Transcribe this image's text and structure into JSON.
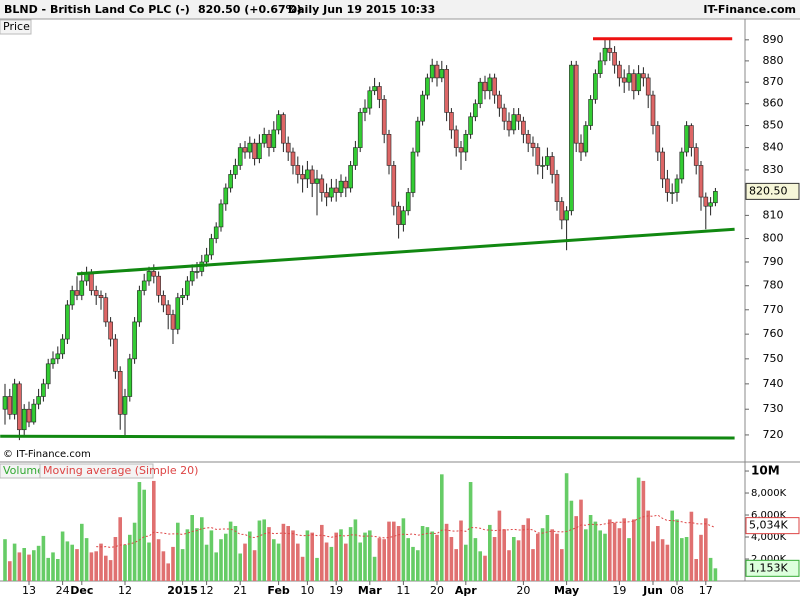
{
  "chart_data": {
    "type": "candlestick",
    "title": "BLND - British Land Co PLC (-)",
    "price_text": "820.50 (+0.67%)",
    "period_text": "Daily  Jun 19 2015 10:33",
    "brand": "IT-Finance.com",
    "panel_label": "Price",
    "copyright": "© IT-Finance.com",
    "log_scale": true,
    "up_color": "#33cc33",
    "down_color": "#dd6666",
    "categories": [
      null,
      null,
      null,
      null,
      null,
      "13",
      null,
      null,
      null,
      null,
      null,
      null,
      "24",
      null,
      null,
      null,
      "Dec",
      null,
      null,
      null,
      null,
      null,
      null,
      null,
      null,
      "12",
      null,
      null,
      null,
      null,
      null,
      null,
      null,
      null,
      null,
      null,
      null,
      "2015",
      null,
      null,
      null,
      null,
      "12",
      null,
      null,
      null,
      null,
      null,
      null,
      "21",
      null,
      null,
      null,
      null,
      null,
      null,
      null,
      "Feb",
      null,
      null,
      null,
      null,
      null,
      "10",
      null,
      null,
      null,
      null,
      null,
      "19",
      null,
      null,
      null,
      null,
      null,
      null,
      "Mar",
      null,
      null,
      null,
      null,
      null,
      null,
      "11",
      null,
      null,
      null,
      null,
      null,
      null,
      "20",
      null,
      null,
      null,
      null,
      null,
      "Apr",
      null,
      null,
      null,
      null,
      null,
      null,
      null,
      null,
      null,
      null,
      null,
      "20",
      null,
      null,
      null,
      null,
      null,
      null,
      null,
      null,
      "May",
      null,
      null,
      null,
      null,
      null,
      null,
      null,
      null,
      null,
      null,
      "19",
      null,
      null,
      null,
      null,
      null,
      null,
      "Jun",
      null,
      null,
      null,
      null,
      "08",
      null,
      null,
      null,
      null,
      null,
      "17",
      null,
      null
    ],
    "open": [
      730,
      735,
      728,
      740,
      722,
      730,
      725,
      732,
      735,
      740,
      748,
      750,
      752,
      758,
      772,
      778,
      776,
      782,
      785,
      778,
      776,
      775,
      765,
      758,
      745,
      728,
      735,
      750,
      765,
      778,
      782,
      786,
      784,
      776,
      772,
      768,
      762,
      775,
      776,
      782,
      786,
      786,
      790,
      793,
      800,
      805,
      815,
      822,
      828,
      832,
      840,
      838,
      842,
      835,
      842,
      846,
      840,
      848,
      855,
      842,
      838,
      832,
      828,
      826,
      830,
      824,
      826,
      820,
      818,
      822,
      820,
      825,
      822,
      832,
      840,
      856,
      858,
      866,
      868,
      862,
      846,
      832,
      814,
      806,
      812,
      820,
      838,
      852,
      864,
      872,
      878,
      872,
      876,
      856,
      848,
      840,
      838,
      846,
      854,
      860,
      870,
      866,
      872,
      864,
      858,
      852,
      848,
      855,
      852,
      846,
      842,
      840,
      832,
      832,
      836,
      828,
      816,
      808,
      812,
      878,
      842,
      838,
      850,
      862,
      874,
      880,
      886,
      884,
      878,
      872,
      870,
      874,
      866,
      874,
      872,
      864,
      850,
      838,
      826,
      820,
      820,
      826,
      838,
      850,
      840,
      832,
      818,
      814,
      815.5
    ],
    "high": [
      740,
      738,
      742,
      741,
      732,
      733,
      734,
      738,
      742,
      750,
      753,
      755,
      760,
      774,
      780,
      784,
      786,
      788,
      787,
      780,
      778,
      777,
      767,
      760,
      747,
      738,
      752,
      767,
      780,
      785,
      788,
      789,
      786,
      778,
      774,
      770,
      777,
      779,
      784,
      789,
      790,
      793,
      796,
      802,
      807,
      817,
      824,
      830,
      835,
      842,
      843,
      845,
      844,
      846,
      849,
      848,
      852,
      857,
      856,
      845,
      840,
      836,
      832,
      834,
      832,
      830,
      828,
      824,
      826,
      826,
      828,
      827,
      834,
      843,
      858,
      862,
      868,
      872,
      870,
      864,
      848,
      834,
      816,
      814,
      822,
      840,
      854,
      866,
      874,
      881,
      880,
      880,
      878,
      858,
      850,
      843,
      848,
      856,
      862,
      872,
      873,
      874,
      874,
      866,
      860,
      856,
      858,
      858,
      854,
      848,
      845,
      842,
      836,
      840,
      838,
      830,
      818,
      814,
      880,
      880,
      846,
      852,
      864,
      876,
      884,
      890,
      890,
      887,
      880,
      876,
      878,
      876,
      878,
      877,
      874,
      866,
      852,
      840,
      830,
      824,
      828,
      840,
      852,
      851,
      842,
      834,
      820,
      818,
      822
    ],
    "low": [
      724,
      726,
      726,
      718,
      720,
      723,
      724,
      730,
      733,
      738,
      746,
      748,
      750,
      756,
      770,
      774,
      774,
      780,
      776,
      772,
      770,
      763,
      755,
      742,
      722,
      719,
      733,
      748,
      763,
      776,
      780,
      781,
      773,
      769,
      762,
      756,
      760,
      772,
      774,
      780,
      783,
      784,
      788,
      791,
      798,
      803,
      812,
      820,
      826,
      830,
      835,
      835,
      832,
      833,
      840,
      836,
      838,
      846,
      838,
      834,
      828,
      824,
      820,
      822,
      818,
      810,
      816,
      814,
      816,
      816,
      818,
      818,
      820,
      830,
      838,
      852,
      855,
      864,
      858,
      842,
      828,
      810,
      800,
      803,
      810,
      818,
      836,
      850,
      862,
      870,
      868,
      870,
      852,
      844,
      836,
      830,
      834,
      844,
      852,
      858,
      862,
      862,
      860,
      854,
      848,
      845,
      846,
      848,
      842,
      838,
      836,
      828,
      826,
      830,
      824,
      812,
      804,
      795,
      810,
      838,
      834,
      836,
      848,
      860,
      872,
      878,
      880,
      874,
      868,
      865,
      866,
      862,
      864,
      868,
      858,
      846,
      834,
      822,
      816,
      815,
      816,
      824,
      836,
      836,
      828,
      812,
      804,
      810,
      814
    ],
    "close": [
      735,
      728,
      740,
      722,
      730,
      725,
      732,
      735,
      740,
      748,
      750,
      752,
      758,
      772,
      778,
      776,
      782,
      785,
      778,
      776,
      775,
      765,
      758,
      745,
      728,
      735,
      750,
      765,
      778,
      782,
      786,
      784,
      776,
      772,
      768,
      762,
      775,
      776,
      782,
      786,
      786,
      790,
      793,
      800,
      805,
      815,
      822,
      828,
      832,
      840,
      838,
      842,
      835,
      842,
      846,
      840,
      848,
      855,
      842,
      838,
      832,
      828,
      826,
      830,
      824,
      826,
      820,
      818,
      822,
      820,
      825,
      822,
      832,
      840,
      856,
      858,
      866,
      868,
      862,
      846,
      832,
      814,
      806,
      812,
      820,
      838,
      852,
      864,
      872,
      878,
      872,
      876,
      856,
      848,
      840,
      838,
      846,
      854,
      860,
      870,
      866,
      872,
      864,
      858,
      852,
      848,
      855,
      852,
      846,
      842,
      840,
      832,
      832,
      836,
      828,
      816,
      808,
      812,
      878,
      842,
      838,
      850,
      862,
      874,
      880,
      886,
      884,
      878,
      872,
      870,
      874,
      866,
      874,
      872,
      864,
      850,
      838,
      826,
      820,
      820,
      826,
      838,
      850,
      840,
      832,
      818,
      814,
      815.5,
      820.5
    ],
    "ylim": [
      710,
      900
    ],
    "yticks": [
      720,
      730,
      740,
      750,
      760,
      770,
      780,
      790,
      800,
      810,
      830,
      840,
      850,
      860,
      870,
      880,
      890
    ],
    "last_price": {
      "value": 820.5,
      "label": "820.50"
    },
    "trend_lines": [
      {
        "color": "#ee1111",
        "points": [
          [
            122.5,
            890.5
          ],
          [
            151.5,
            890.5
          ]
        ]
      },
      {
        "color": "#118811",
        "points": [
          [
            15,
            785
          ],
          [
            152,
            804
          ]
        ]
      },
      {
        "color": "#118811",
        "points": [
          [
            -1,
            719.5
          ],
          [
            152,
            718.8
          ]
        ]
      }
    ],
    "volume": {
      "name": "Volume",
      "ma_name": "Moving average (Simple 20)",
      "ma_color": "#dd4444",
      "up_color": "#66cc66",
      "down_color": "#e07070",
      "values": [
        3800,
        1800,
        3400,
        2600,
        3000,
        2400,
        2800,
        3200,
        4100,
        2100,
        2600,
        2000,
        4500,
        3600,
        3300,
        2900,
        5200,
        3900,
        2600,
        2700,
        3400,
        2300,
        1900,
        4000,
        5800,
        3300,
        4200,
        5300,
        9000,
        8300,
        3500,
        9100,
        3800,
        2700,
        1600,
        3100,
        5300,
        2900,
        4700,
        6000,
        4800,
        5800,
        3300,
        4600,
        2600,
        3800,
        4300,
        5400,
        5000,
        2500,
        3400,
        4500,
        2800,
        5500,
        5600,
        4900,
        3800,
        3400,
        5200,
        5000,
        4600,
        3400,
        2200,
        4600,
        4400,
        2100,
        5100,
        3500,
        3100,
        4400,
        4700,
        3400,
        4900,
        5600,
        3500,
        4400,
        4600,
        2200,
        3900,
        3800,
        5400,
        5400,
        5000,
        5700,
        3900,
        3100,
        2800,
        5000,
        4900,
        4500,
        4200,
        9700,
        5200,
        4000,
        2900,
        5500,
        3300,
        9000,
        3900,
        2700,
        2300,
        5100,
        4000,
        6400,
        4700,
        2800,
        4000,
        3700,
        5100,
        5700,
        2900,
        4300,
        4800,
        6000,
        4700,
        4300,
        2900,
        9800,
        7300,
        5900,
        7400,
        4700,
        6000,
        5400,
        4600,
        4300,
        5600,
        5300,
        4800,
        5700,
        3900,
        5600,
        9400,
        9100,
        6400,
        3600,
        5000,
        3800,
        3300,
        6400,
        5600,
        3900,
        4000,
        6300,
        2000,
        4200,
        5700,
        2100,
        1153
      ],
      "ylim": [
        0,
        10730
      ],
      "yticks": [
        {
          "value": 2000,
          "label": "2,000K"
        },
        {
          "value": 4000,
          "label": "4,000K"
        },
        {
          "value": 6000,
          "label": "6,000K"
        },
        {
          "value": 8000,
          "label": "8,000K"
        },
        {
          "value": 10000,
          "label": "10M"
        }
      ],
      "ma_last": {
        "value": 5034,
        "label": "5,034K"
      },
      "last": {
        "value": 1153,
        "label": "1,153K"
      }
    }
  }
}
